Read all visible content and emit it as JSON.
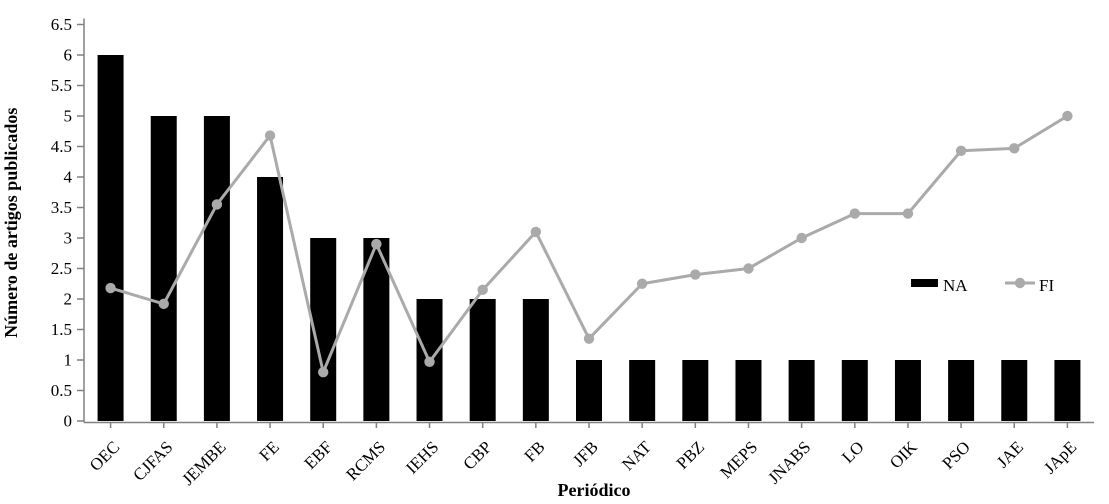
{
  "chart_data": {
    "type": "bar+line",
    "title": "",
    "xlabel": "Periódico",
    "ylabel": "Número de artigos publicados",
    "categories": [
      "OEC",
      "CJFAS",
      "JEMBE",
      "FE",
      "EBF",
      "RCMS",
      "IEHS",
      "CBP",
      "FB",
      "JFB",
      "NAT",
      "PBZ",
      "MEPS",
      "JNABS",
      "LO",
      "OIK",
      "PSO",
      "JAE",
      "JApE"
    ],
    "series": [
      {
        "name": "NA",
        "type": "bar",
        "color": "#000000",
        "values": [
          6,
          5,
          5,
          4,
          3,
          3,
          2,
          2,
          2,
          1,
          1,
          1,
          1,
          1,
          1,
          1,
          1,
          1,
          1
        ]
      },
      {
        "name": "FI",
        "type": "line",
        "color": "#aaaaaa",
        "values": [
          2.18,
          1.92,
          3.55,
          4.68,
          0.8,
          2.9,
          0.97,
          2.15,
          3.1,
          1.35,
          2.25,
          2.4,
          2.5,
          3.0,
          3.4,
          3.4,
          4.43,
          4.47,
          5.0
        ]
      }
    ],
    "ylim": [
      0,
      6.5
    ],
    "ytick_step": 0.5,
    "ytick_labels": [
      "0",
      "0.5",
      "1",
      "1.5",
      "2",
      "2.5",
      "3",
      "3.5",
      "4",
      "4.5",
      "5",
      "5.5",
      "6",
      "6.5"
    ],
    "grid": false,
    "legend_position": "inside-right-middle",
    "legend": [
      "NA",
      "FI"
    ]
  },
  "colors": {
    "background": "#ffffff",
    "axis": "#808080",
    "bar": "#000000",
    "line": "#aaaaaa",
    "text": "#000000"
  }
}
